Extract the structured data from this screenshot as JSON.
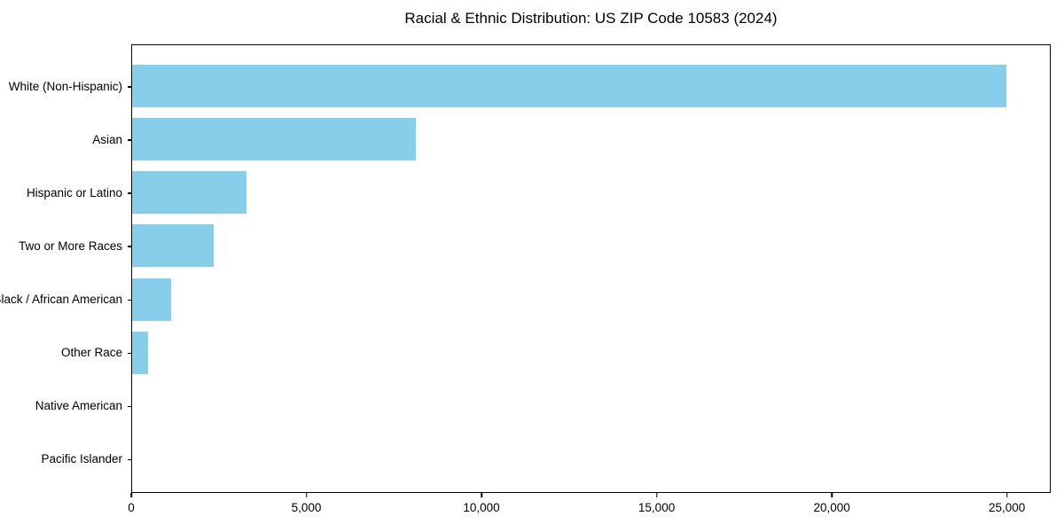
{
  "title": "Racial & Ethnic Distribution: US ZIP Code 10583 (2024)",
  "style": {
    "bar_color": "#87CEEB",
    "axis_color": "#000000",
    "background_color": "#ffffff"
  },
  "chart_data": {
    "type": "bar",
    "orientation": "horizontal",
    "title": "Racial & Ethnic Distribution: US ZIP Code 10583 (2024)",
    "categories": [
      "White (Non-Hispanic)",
      "Asian",
      "Hispanic or Latino",
      "Two or More Races",
      "Black / African American",
      "Other Race",
      "Native American",
      "Pacific Islander"
    ],
    "values": [
      25000,
      8110,
      3260,
      2330,
      1110,
      455,
      0,
      0
    ],
    "xlabel": "",
    "ylabel": "",
    "xlim": [
      0,
      26250
    ],
    "x_ticks": [
      0,
      5000,
      10000,
      15000,
      20000,
      25000
    ],
    "x_tick_labels": [
      "0",
      "5,000",
      "10,000",
      "15,000",
      "20,000",
      "25,000"
    ],
    "bar_color": "#87CEEB",
    "grid": false,
    "legend": false,
    "categories_order": "top-to-bottom descending"
  }
}
